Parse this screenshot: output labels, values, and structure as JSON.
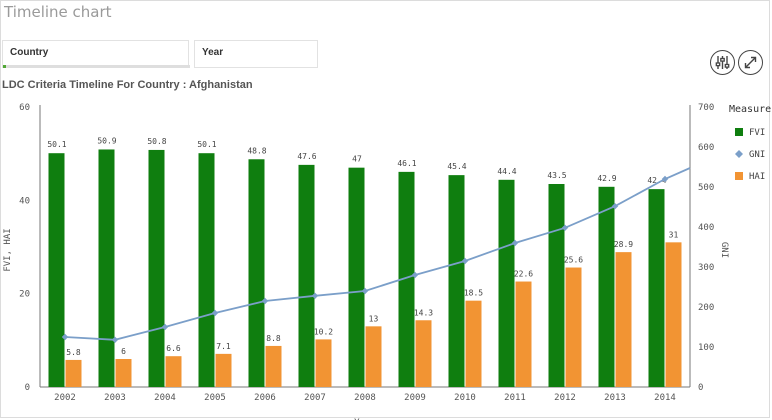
{
  "sheet_title": "Timeline chart",
  "filters": {
    "country_label": "Country",
    "year_label": "Year",
    "country_progress": 0.016
  },
  "toolbar": {
    "settings_icon": "sliders-icon",
    "expand_icon": "expand-icon"
  },
  "chart_title": "LDC Criteria Timeline For Country : Afghanistan",
  "colors": {
    "fvi": "#0f7e0f",
    "gni": "#7b9fc9",
    "hai": "#f29433"
  },
  "chart_data": {
    "type": "bar",
    "categories": [
      "2002",
      "2003",
      "2004",
      "2005",
      "2006",
      "2007",
      "2008",
      "2009",
      "2010",
      "2011",
      "2012",
      "2013",
      "2014"
    ],
    "series": [
      {
        "name": "FVI",
        "kind": "bar",
        "axis": "left",
        "values": [
          50.1,
          50.9,
          50.8,
          50.1,
          48.8,
          47.6,
          47,
          46.1,
          45.4,
          44.4,
          43.5,
          42.9,
          42.4
        ],
        "labels": [
          "50.1",
          "50.9",
          "50.8",
          "50.1",
          "48.8",
          "47.6",
          "47",
          "46.1",
          "45.4",
          "44.4",
          "43.5",
          "42.9",
          "42.4"
        ]
      },
      {
        "name": "GNI",
        "kind": "line",
        "axis": "right",
        "values": [
          125,
          118,
          150,
          185,
          215,
          228,
          240,
          280,
          315,
          360,
          398,
          452,
          520
        ]
      },
      {
        "name": "HAI",
        "kind": "bar",
        "axis": "left",
        "values": [
          5.8,
          6,
          6.6,
          7.1,
          8.8,
          10.2,
          13,
          14.3,
          18.5,
          22.6,
          25.6,
          28.9,
          31
        ],
        "labels": [
          "5.8",
          "6",
          "6.6",
          "7.1",
          "8.8",
          "10.2",
          "13",
          "14.3",
          "18.5",
          "22.6",
          "25.6",
          "28.9",
          "31"
        ]
      }
    ],
    "y_left": {
      "label": "FVI, HAI",
      "ticks": [
        "0",
        "20",
        "40",
        "60"
      ],
      "range": [
        0,
        60
      ]
    },
    "y_right": {
      "label": "GNI",
      "ticks": [
        "0",
        "100",
        "200",
        "300",
        "400",
        "500",
        "600",
        "700"
      ],
      "range": [
        0,
        700
      ]
    },
    "xlabel": "Year",
    "legend": {
      "title": "Measures",
      "items": [
        "FVI",
        "GNI",
        "HAI"
      ],
      "placement": "right"
    },
    "grid": false
  }
}
